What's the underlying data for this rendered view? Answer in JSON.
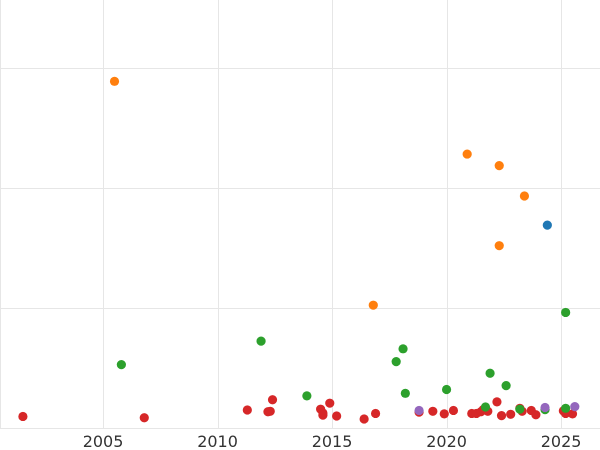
{
  "chart_data": {
    "type": "scatter",
    "title": "",
    "xlabel": "",
    "ylabel": "",
    "xlim": [
      2000.5,
      2026.7
    ],
    "ylim": [
      0,
      100
    ],
    "xticks": [
      2005,
      2010,
      2015,
      2020,
      2025
    ],
    "xtick_labels": [
      "2005",
      "2010",
      "2015",
      "2020",
      "2025"
    ],
    "yticks": [
      0,
      28,
      56,
      84
    ],
    "grid": true,
    "legend": "none",
    "series": [
      {
        "color": "#d62728",
        "points": [
          [
            2001.5,
            2.7
          ],
          [
            2006.8,
            2.4
          ],
          [
            2011.3,
            4.2
          ],
          [
            2012.2,
            3.8
          ],
          [
            2012.3,
            3.9
          ],
          [
            2012.4,
            6.6
          ],
          [
            2014.5,
            4.4
          ],
          [
            2014.6,
            3.5
          ],
          [
            2014.6,
            3.0
          ],
          [
            2014.9,
            5.8
          ],
          [
            2015.2,
            2.8
          ],
          [
            2016.4,
            2.1
          ],
          [
            2016.9,
            3.4
          ],
          [
            2018.8,
            3.7
          ],
          [
            2019.4,
            3.9
          ],
          [
            2019.9,
            3.3
          ],
          [
            2020.3,
            4.1
          ],
          [
            2021.1,
            3.4
          ],
          [
            2021.3,
            3.4
          ],
          [
            2021.5,
            3.8
          ],
          [
            2021.6,
            4.3
          ],
          [
            2021.8,
            3.9
          ],
          [
            2022.2,
            6.1
          ],
          [
            2022.4,
            2.9
          ],
          [
            2022.8,
            3.2
          ],
          [
            2023.2,
            4.6
          ],
          [
            2023.3,
            3.9
          ],
          [
            2023.7,
            4.1
          ],
          [
            2023.9,
            3.1
          ],
          [
            2025.1,
            4.0
          ],
          [
            2025.2,
            3.4
          ],
          [
            2025.5,
            3.3
          ]
        ]
      },
      {
        "color": "#2ca02c",
        "points": [
          [
            2005.8,
            14.8
          ],
          [
            2011.9,
            20.3
          ],
          [
            2013.9,
            7.5
          ],
          [
            2017.8,
            15.5
          ],
          [
            2018.1,
            18.5
          ],
          [
            2018.2,
            8.1
          ],
          [
            2020.0,
            9.0
          ],
          [
            2021.7,
            4.9
          ],
          [
            2021.9,
            12.8
          ],
          [
            2022.6,
            9.9
          ],
          [
            2023.2,
            4.4
          ],
          [
            2024.3,
            4.3
          ],
          [
            2025.2,
            27.0
          ],
          [
            2025.2,
            4.6
          ]
        ]
      },
      {
        "color": "#ff7f0e",
        "points": [
          [
            2005.5,
            81.0
          ],
          [
            2016.8,
            28.7
          ],
          [
            2020.9,
            64.0
          ],
          [
            2022.3,
            61.3
          ],
          [
            2022.3,
            42.6
          ],
          [
            2023.4,
            54.2
          ]
        ]
      },
      {
        "color": "#1f77b4",
        "points": [
          [
            2024.4,
            47.4
          ]
        ]
      },
      {
        "color": "#9467bd",
        "points": [
          [
            2018.8,
            4.1
          ],
          [
            2024.3,
            4.8
          ],
          [
            2025.6,
            5.0
          ]
        ]
      }
    ]
  }
}
